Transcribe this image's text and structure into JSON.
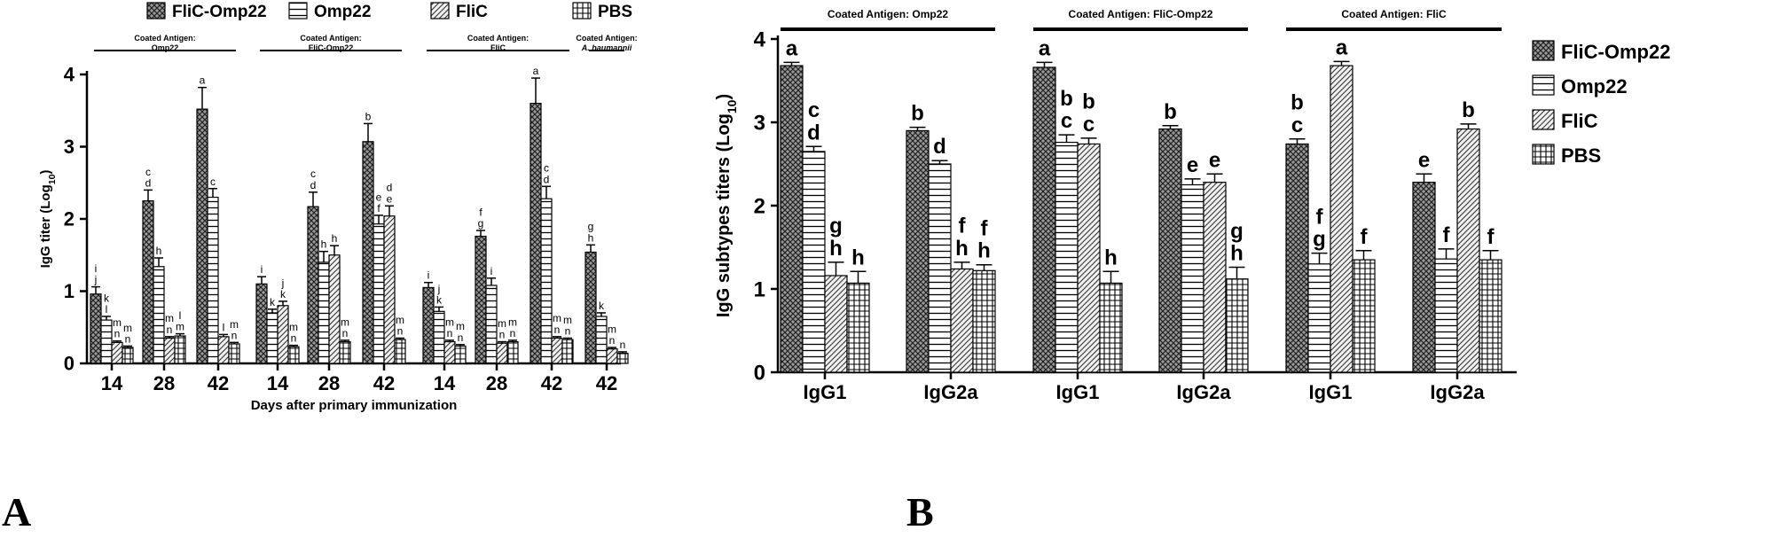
{
  "panel_labels": {
    "a": "A",
    "b": "B"
  },
  "chart_data": [
    {
      "type": "bar",
      "panel": "A",
      "ylabel": "IgG titer (Log10)",
      "xlabel": "Days after primary immunization",
      "ylim": [
        0,
        4
      ],
      "yticks": [
        "0",
        "1",
        "2",
        "3",
        "4"
      ],
      "legend": [
        {
          "name": "FliC-Omp22",
          "pattern": "cross"
        },
        {
          "name": "Omp22",
          "pattern": "hlines"
        },
        {
          "name": "FliC",
          "pattern": "diag"
        },
        {
          "name": "PBS",
          "pattern": "grid"
        }
      ],
      "groups": [
        {
          "label": "Coated Antigen:\nOmp22",
          "categories": [
            "14",
            "28",
            "42"
          ]
        },
        {
          "label": "Coated Antigen:\nFliC-Omp22",
          "categories": [
            "14",
            "28",
            "42"
          ]
        },
        {
          "label": "Coated Antigen:\nFliC",
          "categories": [
            "14",
            "28",
            "42"
          ]
        },
        {
          "label": "Coated Antigen:\nA. baumannii",
          "categories": [
            "42"
          ]
        }
      ],
      "categories": [
        "14",
        "28",
        "42",
        "14",
        "28",
        "42",
        "14",
        "28",
        "42",
        "42"
      ],
      "series": [
        {
          "name": "FliC-Omp22",
          "values": [
            0.96,
            2.25,
            3.52,
            1.1,
            2.17,
            3.07,
            1.05,
            1.76,
            3.6,
            1.54
          ],
          "errors": [
            0.1,
            0.15,
            0.3,
            0.1,
            0.2,
            0.25,
            0.07,
            0.08,
            0.35,
            0.1
          ],
          "labels": [
            "i j",
            "c d",
            "a",
            "i",
            "c d",
            "b",
            "i",
            "f g",
            "a",
            "g h"
          ]
        },
        {
          "name": "Omp22",
          "values": [
            0.6,
            1.34,
            2.3,
            0.7,
            1.4,
            1.93,
            0.72,
            1.08,
            2.28,
            0.65
          ],
          "errors": [
            0.05,
            0.12,
            0.12,
            0.05,
            0.15,
            0.12,
            0.06,
            0.1,
            0.17,
            0.05
          ],
          "labels": [
            "k l",
            "h",
            "c",
            "k",
            "h",
            "e f",
            "j k",
            "i",
            "c d",
            "k"
          ]
        },
        {
          "name": "FliC",
          "values": [
            0.29,
            0.35,
            0.37,
            0.8,
            1.5,
            2.04,
            0.3,
            0.28,
            0.35,
            0.2
          ],
          "errors": [
            0.02,
            0.02,
            0.03,
            0.06,
            0.13,
            0.14,
            0.02,
            0.02,
            0.02,
            0.02
          ],
          "labels": [
            "m n",
            "m n",
            "l",
            "j k",
            "h",
            "d e",
            "m n",
            "m n",
            "m n",
            "m n"
          ]
        },
        {
          "name": "PBS",
          "values": [
            0.22,
            0.38,
            0.27,
            0.23,
            0.3,
            0.33,
            0.24,
            0.3,
            0.33,
            0.14
          ],
          "errors": [
            0.02,
            0.03,
            0.02,
            0.02,
            0.02,
            0.02,
            0.02,
            0.02,
            0.02,
            0.02
          ],
          "labels": [
            "m n",
            "l m",
            "m n",
            "m n",
            "m n",
            "m n",
            "m n",
            "m n",
            "m n",
            "n"
          ]
        }
      ]
    },
    {
      "type": "bar",
      "panel": "B",
      "ylabel": "IgG subtypes titers (Log10)",
      "xlabel": "",
      "ylim": [
        0,
        4
      ],
      "yticks": [
        "0",
        "1",
        "2",
        "3",
        "4"
      ],
      "legend": [
        {
          "name": "FliC-Omp22",
          "pattern": "cross"
        },
        {
          "name": "Omp22",
          "pattern": "hlines"
        },
        {
          "name": "FliC",
          "pattern": "diag"
        },
        {
          "name": "PBS",
          "pattern": "grid"
        }
      ],
      "groups": [
        {
          "label": "Coated Antigen: Omp22",
          "categories": [
            "IgG1",
            "IgG2a"
          ]
        },
        {
          "label": "Coated Antigen: FliC-Omp22",
          "categories": [
            "IgG1",
            "IgG2a"
          ]
        },
        {
          "label": "Coated Antigen: FliC",
          "categories": [
            "IgG1",
            "IgG2a"
          ]
        }
      ],
      "categories": [
        "IgG1",
        "IgG2a",
        "IgG1",
        "IgG2a",
        "IgG1",
        "IgG2a"
      ],
      "series": [
        {
          "name": "FliC-Omp22",
          "values": [
            3.68,
            2.9,
            3.66,
            2.92,
            2.74,
            2.28
          ],
          "errors": [
            0.04,
            0.04,
            0.06,
            0.04,
            0.06,
            0.1
          ],
          "labels": [
            "a",
            "b",
            "a",
            "b",
            "b c",
            "e"
          ]
        },
        {
          "name": "Omp22",
          "values": [
            2.65,
            2.5,
            2.76,
            2.25,
            1.3,
            1.36
          ],
          "errors": [
            0.06,
            0.04,
            0.09,
            0.07,
            0.13,
            0.12
          ],
          "labels": [
            "c d",
            "d",
            "b c",
            "e",
            "f g",
            "f"
          ]
        },
        {
          "name": "FliC",
          "values": [
            1.16,
            1.24,
            2.74,
            2.28,
            3.68,
            2.92
          ],
          "errors": [
            0.16,
            0.08,
            0.07,
            0.1,
            0.05,
            0.06
          ],
          "labels": [
            "g h",
            "f h",
            "b c",
            "e",
            "a",
            "b"
          ]
        },
        {
          "name": "PBS",
          "values": [
            1.07,
            1.22,
            1.07,
            1.12,
            1.35,
            1.35
          ],
          "errors": [
            0.14,
            0.07,
            0.14,
            0.14,
            0.11,
            0.11
          ],
          "labels": [
            "h",
            "f h",
            "h",
            "g h",
            "f",
            "f"
          ]
        }
      ]
    }
  ]
}
